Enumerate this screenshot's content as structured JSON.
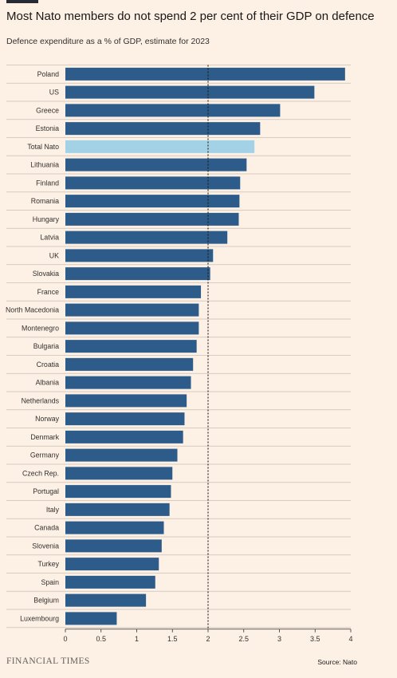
{
  "title": "Most Nato members do not spend 2 per cent of their GDP on defence",
  "subtitle": "Defence expenditure as a % of GDP, estimate for 2023",
  "source": "Source: Nato",
  "logo_text": "FINANCIAL TIMES",
  "colors": {
    "bar": "#2e5c8a",
    "highlight": "#a3d2e6",
    "reference_line": "#1a1817",
    "gridline": "#c9bfb6"
  },
  "chart_data": {
    "type": "bar",
    "orientation": "horizontal",
    "title": "Most Nato members do not spend 2 per cent of their GDP on defence",
    "subtitle": "Defence expenditure as a % of GDP, estimate for 2023",
    "categories": [
      "Poland",
      "US",
      "Greece",
      "Estonia",
      "Total Nato",
      "Lithuania",
      "Finland",
      "Romania",
      "Hungary",
      "Latvia",
      "UK",
      "Slovakia",
      "France",
      "North Macedonia",
      "Montenegro",
      "Bulgaria",
      "Croatia",
      "Albania",
      "Netherlands",
      "Norway",
      "Denmark",
      "Germany",
      "Czech Rep.",
      "Portugal",
      "Italy",
      "Canada",
      "Slovenia",
      "Turkey",
      "Spain",
      "Belgium",
      "Luxembourg"
    ],
    "values": [
      3.92,
      3.49,
      3.01,
      2.73,
      2.65,
      2.54,
      2.45,
      2.44,
      2.43,
      2.27,
      2.07,
      2.03,
      1.9,
      1.87,
      1.87,
      1.84,
      1.79,
      1.76,
      1.7,
      1.67,
      1.65,
      1.57,
      1.5,
      1.48,
      1.46,
      1.38,
      1.35,
      1.31,
      1.26,
      1.13,
      0.72
    ],
    "highlight": "Total Nato",
    "xlim": [
      0,
      4
    ],
    "x_ticks": [
      "0",
      "0.5",
      "1",
      "1.5",
      "2",
      "2.5",
      "3",
      "3.5",
      "4"
    ],
    "reference_line": 2,
    "grid": true,
    "xlabel": "",
    "ylabel": ""
  }
}
